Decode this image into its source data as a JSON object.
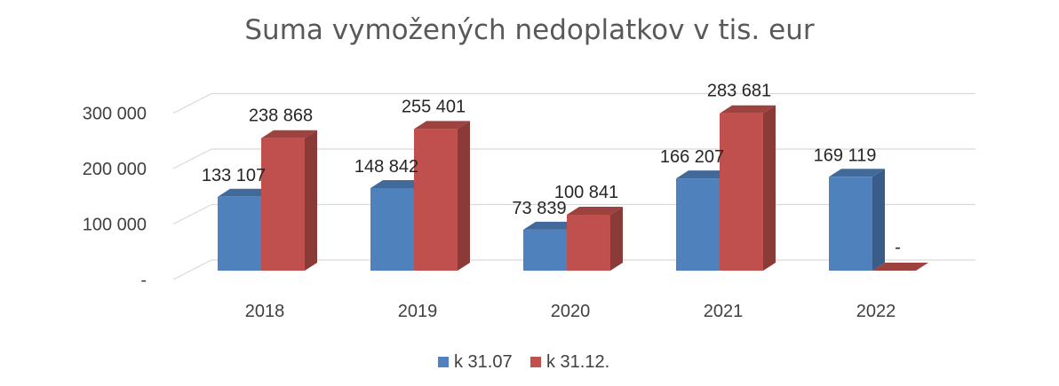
{
  "chart_data": {
    "type": "bar",
    "title": "Suma vymožených nedoplatkov v tis. eur",
    "categories": [
      "2018",
      "2019",
      "2020",
      "2021",
      "2022"
    ],
    "series": [
      {
        "name": "k 31.07",
        "color": "#4f81bd",
        "values": [
          133107,
          148842,
          73839,
          166207,
          169119
        ],
        "labels": [
          "133 107",
          "148 842",
          "73 839",
          "166 207",
          "169 119"
        ]
      },
      {
        "name": "k 31.12.",
        "color": "#c0504d",
        "values": [
          238868,
          255401,
          100841,
          283681,
          0
        ],
        "labels": [
          "238 868",
          "255 401",
          "100 841",
          "283 681",
          "-"
        ]
      }
    ],
    "y_ticks": [
      {
        "value": 0,
        "label": "-"
      },
      {
        "value": 100000,
        "label": "100 000"
      },
      {
        "value": 200000,
        "label": "200 000"
      },
      {
        "value": 300000,
        "label": "300 000"
      }
    ],
    "ylim": [
      0,
      300000
    ],
    "grid": true,
    "legend_position": "bottom",
    "style": "3d-clustered-column"
  }
}
